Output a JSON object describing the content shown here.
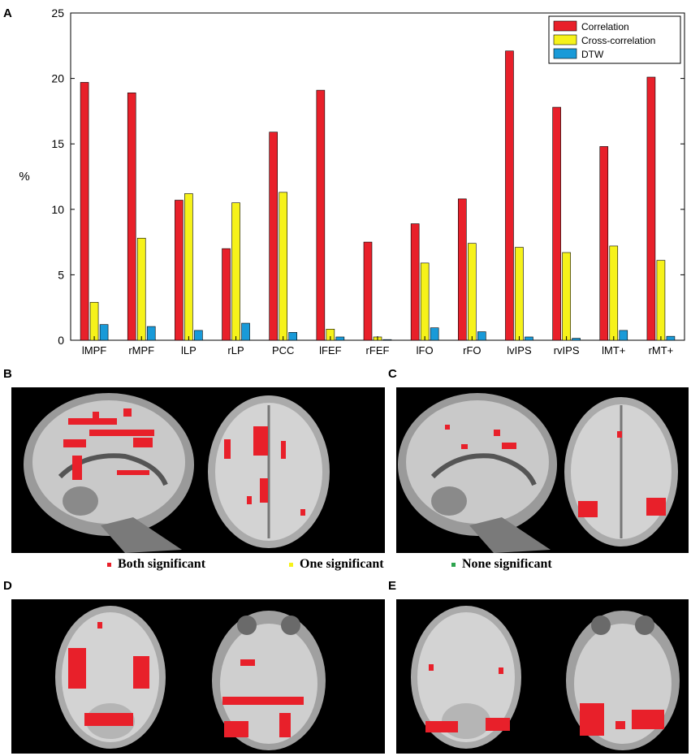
{
  "panels": {
    "a": "A",
    "b": "B",
    "c": "C",
    "d": "D",
    "e": "E"
  },
  "chart_data": {
    "type": "bar",
    "title": "",
    "xlabel": "",
    "ylabel": "%",
    "ylim": [
      0,
      25
    ],
    "yticks": [
      "0",
      "5",
      "10",
      "15",
      "20",
      "25"
    ],
    "grid": false,
    "legend_position": "top-right",
    "categories": [
      "lMPF",
      "rMPF",
      "lLP",
      "rLP",
      "PCC",
      "lFEF",
      "rFEF",
      "lFO",
      "rFO",
      "lvIPS",
      "rvIPS",
      "lMT+",
      "rMT+"
    ],
    "series": [
      {
        "name": "Correlation",
        "color": "#e8202a",
        "values": [
          19.7,
          18.9,
          10.7,
          7.0,
          15.9,
          19.1,
          7.5,
          8.9,
          10.8,
          22.1,
          17.8,
          14.8,
          20.1
        ]
      },
      {
        "name": "Cross-correlation",
        "color": "#f6f21a",
        "values": [
          2.9,
          7.8,
          11.2,
          10.5,
          11.3,
          0.85,
          0.25,
          5.9,
          7.4,
          7.1,
          6.7,
          7.2,
          6.1
        ]
      },
      {
        "name": "DTW",
        "color": "#199ad8",
        "values": [
          1.2,
          1.05,
          0.75,
          1.3,
          0.6,
          0.25,
          0.05,
          0.95,
          0.65,
          0.25,
          0.15,
          0.75,
          0.3
        ]
      }
    ]
  },
  "significance_legend": [
    {
      "label": "Both significant",
      "color": "#e8202a"
    },
    {
      "label": "One significant",
      "color": "#f6f21a"
    },
    {
      "label": "None significant",
      "color": "#2ea44f"
    }
  ]
}
